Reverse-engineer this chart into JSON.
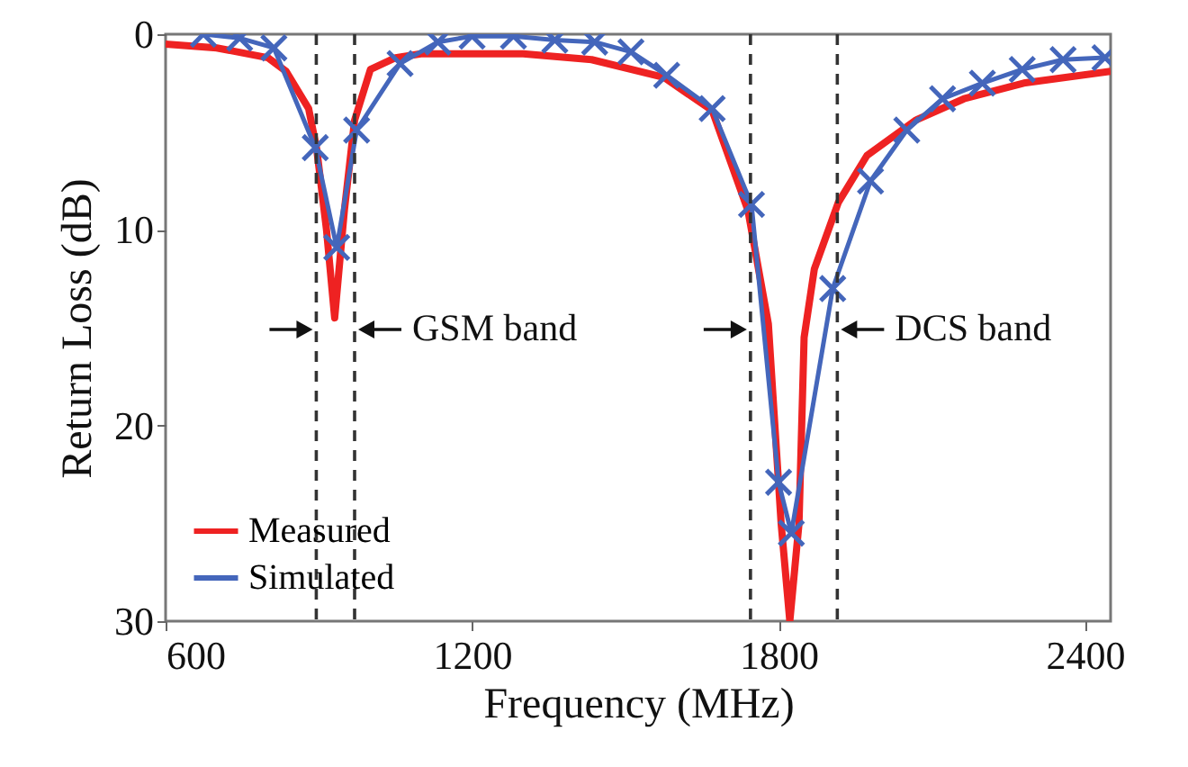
{
  "chart_data": {
    "type": "line",
    "xlabel": "Frequency (MHz)",
    "ylabel": "Return Loss (dB)",
    "xlim": [
      600,
      2450
    ],
    "xticks": [
      600,
      1200,
      1800,
      2400
    ],
    "ylim": [
      30,
      0
    ],
    "yticks": [
      0,
      10,
      20,
      30
    ],
    "legend": "bottom left",
    "series": [
      {
        "name": "Measured",
        "color": "#ee2222",
        "x": [
          600,
          700,
          800,
          836,
          880,
          896,
          915,
          931,
          950,
          970,
          1001,
          1050,
          1100,
          1300,
          1434,
          1575,
          1670,
          1740,
          1780,
          1805,
          1822,
          1840,
          1850,
          1870,
          1917,
          1973,
          2068,
          2163,
          2280,
          2450
        ],
        "values": [
          0.5,
          0.7,
          1.2,
          1.9,
          3.8,
          5.9,
          10,
          14.5,
          9,
          4.4,
          1.8,
          1.2,
          1.0,
          1.0,
          1.3,
          2.2,
          3.9,
          9.0,
          14.8,
          25,
          30,
          25,
          15.5,
          12,
          8.6,
          6.2,
          4.4,
          3.3,
          2.5,
          1.9
        ]
      },
      {
        "name": "Simulated",
        "color": "#4466bb",
        "marker": "cross",
        "x": [
          674,
          745,
          812,
          893,
          935,
          974,
          1059,
          1133,
          1200,
          1281,
          1362,
          1440,
          1511,
          1581,
          1670,
          1747,
          1800,
          1825,
          1906,
          1980,
          2051,
          2121,
          2199,
          2277,
          2357,
          2439
        ],
        "values": [
          0,
          0.2,
          0.7,
          5.8,
          10.9,
          4.9,
          1.5,
          0.4,
          0.1,
          0.1,
          0.3,
          0.4,
          0.9,
          2.1,
          3.8,
          8.7,
          22.9,
          25.5,
          13.0,
          7.5,
          4.9,
          3.3,
          2.5,
          1.8,
          1.3,
          1.2
        ]
      }
    ],
    "ref_lines": [
      {
        "axis": "x",
        "value": 895,
        "color": "#333333",
        "line_style": "dashed"
      },
      {
        "axis": "x",
        "value": 970,
        "color": "#333333",
        "line_style": "dashed"
      },
      {
        "axis": "x",
        "value": 1745,
        "color": "#333333",
        "line_style": "dashed"
      },
      {
        "axis": "x",
        "value": 1915,
        "color": "#333333",
        "line_style": "dashed"
      }
    ],
    "annotations": [
      "GSM band",
      "DCS band"
    ]
  }
}
